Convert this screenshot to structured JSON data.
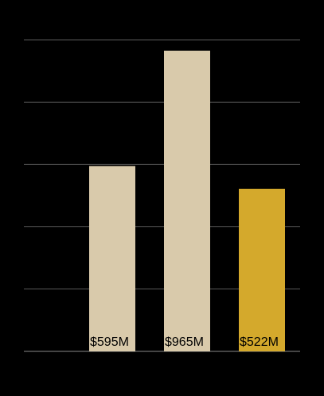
{
  "chart_data": {
    "type": "bar",
    "values": [
      595,
      965,
      522
    ],
    "value_labels": [
      "$595M",
      "$965M",
      "$522M"
    ],
    "colors": [
      "#d9caab",
      "#d9caab",
      "#d4a92c"
    ],
    "ylim": [
      0,
      1000
    ],
    "yticks": [
      0,
      200,
      400,
      600,
      800,
      1000
    ],
    "grid": true
  }
}
